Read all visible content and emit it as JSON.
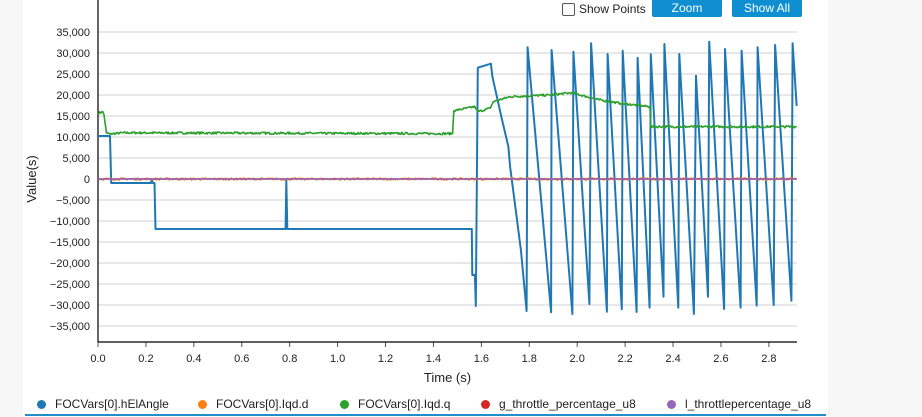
{
  "toolbar": {
    "show_points_label": "Show Points",
    "show_points_checked": false,
    "zoom_label": "Zoom",
    "show_all_label": "Show All",
    "button_color": "#0f8fd2"
  },
  "chart_data": {
    "type": "line",
    "xlabel": "Time (s)",
    "ylabel": "Value(s)",
    "xlim": [
      0,
      2.92
    ],
    "ylim": [
      -38000,
      38000
    ],
    "xticks": [
      "0.0",
      "0.2",
      "0.4",
      "0.6",
      "0.8",
      "1.0",
      "1.2",
      "1.4",
      "1.6",
      "1.8",
      "2.0",
      "2.2",
      "2.4",
      "2.6",
      "2.8"
    ],
    "yticks": [
      "35,000",
      "30,000",
      "25,000",
      "20,000",
      "15,000",
      "10,000",
      "5,000",
      "0",
      "-5,000",
      "-10,000",
      "-15,000",
      "-20,000",
      "-25,000",
      "-30,000",
      "-35,000"
    ],
    "grid": "horizontal",
    "legend_position": "bottom",
    "series": [
      {
        "name": "FOCVars[0].hElAngle",
        "color": "#1f77b4",
        "points": [
          [
            0,
            10240
          ],
          [
            0.05,
            10240
          ],
          [
            0.055,
            -950
          ],
          [
            0.221,
            -950
          ],
          [
            0.224,
            -100
          ],
          [
            0.228,
            -950
          ],
          [
            0.236,
            -950
          ],
          [
            0.24,
            -11900
          ],
          [
            0.783,
            -11900
          ],
          [
            0.786,
            -300
          ],
          [
            0.79,
            -11900
          ],
          [
            1.56,
            -11900
          ],
          [
            1.562,
            -22860
          ],
          [
            1.573,
            -22860
          ],
          [
            1.577,
            -30240
          ],
          [
            1.585,
            26500
          ],
          [
            1.64,
            27450
          ],
          [
            1.646,
            24360
          ],
          [
            1.685,
            14450
          ],
          [
            1.713,
            7690
          ],
          [
            1.72,
            2930
          ],
          [
            1.747,
            -8980
          ],
          [
            1.765,
            -16900
          ],
          [
            1.789,
            -31430
          ],
          [
            1.793,
            31360
          ],
          [
            1.891,
            -31740
          ],
          [
            1.893,
            30710
          ],
          [
            1.98,
            -32140
          ],
          [
            1.984,
            30310
          ],
          [
            2.051,
            -29760
          ],
          [
            2.058,
            32300
          ],
          [
            2.124,
            -31590
          ],
          [
            2.127,
            29760
          ],
          [
            2.186,
            -31030
          ],
          [
            2.19,
            30550
          ],
          [
            2.248,
            -31670
          ],
          [
            2.252,
            28890
          ],
          [
            2.302,
            -30630
          ],
          [
            2.307,
            29680
          ],
          [
            2.36,
            -28020
          ],
          [
            2.364,
            32140
          ],
          [
            2.422,
            -30630
          ],
          [
            2.426,
            29760
          ],
          [
            2.487,
            -32140
          ],
          [
            2.496,
            24600
          ],
          [
            2.546,
            -28020
          ],
          [
            2.551,
            32700
          ],
          [
            2.613,
            -30950
          ],
          [
            2.617,
            30950
          ],
          [
            2.682,
            -30630
          ],
          [
            2.686,
            30550
          ],
          [
            2.749,
            -30150
          ],
          [
            2.753,
            31360
          ],
          [
            2.82,
            -30000
          ],
          [
            2.826,
            31900
          ],
          [
            2.894,
            -28970
          ],
          [
            2.899,
            32300
          ],
          [
            2.916,
            17380
          ]
        ]
      },
      {
        "name": "FOCVars[0].Iqd.d",
        "color": "#ff7f0e",
        "points": [
          [
            0,
            0
          ],
          [
            2.916,
            0
          ]
        ]
      },
      {
        "name": "FOCVars[0].Iqd.q",
        "color": "#2ca02c",
        "points": [
          [
            0,
            15700
          ],
          [
            0.02,
            16000
          ],
          [
            0.025,
            15300
          ],
          [
            0.035,
            11000
          ],
          [
            0.05,
            10700
          ],
          [
            0.1,
            11000
          ],
          [
            1.48,
            10800
          ],
          [
            1.485,
            16270
          ],
          [
            1.573,
            17210
          ],
          [
            1.585,
            16030
          ],
          [
            1.636,
            16830
          ],
          [
            1.65,
            18400
          ],
          [
            1.72,
            19600
          ],
          [
            1.886,
            20000
          ],
          [
            1.977,
            20550
          ],
          [
            2.081,
            18970
          ],
          [
            2.179,
            18020
          ],
          [
            2.304,
            17210
          ],
          [
            2.306,
            12450
          ],
          [
            2.916,
            12450
          ]
        ]
      },
      {
        "name": "g_throttle_percentage_u8",
        "color": "#d62728",
        "points": [
          [
            0,
            0
          ],
          [
            2.916,
            0
          ]
        ]
      },
      {
        "name": "l_throttlepercentage_u8",
        "color": "#9467bd",
        "points": [
          [
            0,
            0
          ],
          [
            2.916,
            0
          ]
        ]
      }
    ]
  }
}
